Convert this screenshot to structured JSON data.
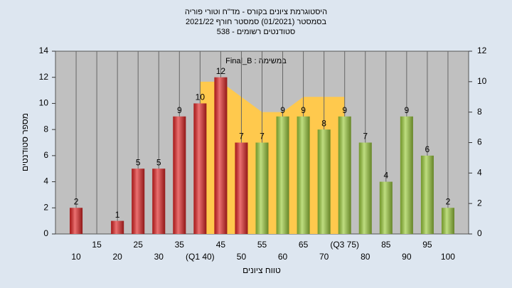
{
  "chart_data": {
    "type": "bar",
    "title": [
      "היסטוגרמת ציונים בקורס - מד\"ח וטורי פוריה",
      "בסמסטר (01/2021) סמסטר חורף 2021/22",
      "סטודנטים רשומים - 538"
    ],
    "annotation": "במשימה : Final_B",
    "xlabel": "טווח ציונים",
    "ylabel": "מספר סטודנטים",
    "x": [
      10,
      15,
      20,
      25,
      30,
      35,
      40,
      45,
      50,
      55,
      60,
      65,
      70,
      75,
      80,
      85,
      90,
      95,
      100
    ],
    "values": [
      2,
      0,
      1,
      5,
      5,
      9,
      10,
      12,
      7,
      7,
      9,
      9,
      8,
      9,
      7,
      4,
      9,
      6,
      2
    ],
    "colors": [
      "#e02424",
      "#e02424",
      "#e02424",
      "#e02424",
      "#e02424",
      "#e02424",
      "#e02424",
      "#e02424",
      "#e02424",
      "#9ccc3c",
      "#9ccc3c",
      "#9ccc3c",
      "#9ccc3c",
      "#9ccc3c",
      "#9ccc3c",
      "#9ccc3c",
      "#9ccc3c",
      "#9ccc3c",
      "#9ccc3c"
    ],
    "area": {
      "axis": "y2",
      "color": "#ffc94d",
      "x": [
        40,
        45,
        50,
        55,
        60,
        65,
        70,
        75
      ],
      "values": [
        10,
        10,
        9,
        8,
        8,
        9,
        9,
        9
      ]
    },
    "xlim": [
      5,
      105
    ],
    "xticks": [
      10,
      15,
      20,
      25,
      30,
      35,
      {
        "value": 40,
        "label": "(Q1 40)"
      },
      45,
      50,
      55,
      60,
      65,
      70,
      {
        "value": 75,
        "label": "(Q3 75)"
      },
      80,
      85,
      90,
      95,
      100
    ],
    "ylim": [
      0,
      14
    ],
    "yticks": [
      0,
      2,
      4,
      6,
      8,
      10,
      12,
      14
    ],
    "y2lim": [
      0,
      12
    ],
    "y2ticks": [
      0,
      2,
      4,
      6,
      8,
      10,
      12
    ],
    "grid": "x"
  }
}
